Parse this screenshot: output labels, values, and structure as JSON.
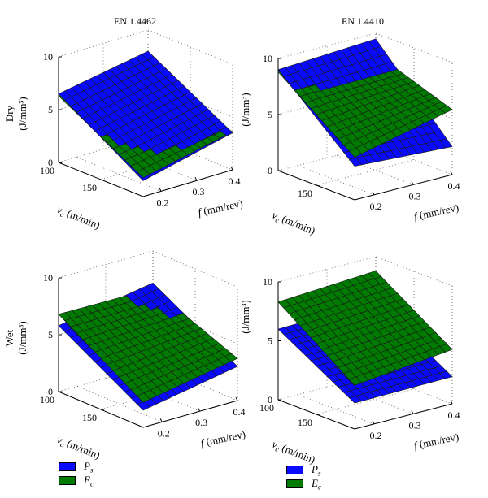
{
  "chart_data": [
    {
      "type": "surface3d",
      "title": "EN 1.4462",
      "ylabel": "Dry (J/mm³)",
      "x": {
        "label": "v_c (m/min)",
        "ticks": [
          "100",
          "150"
        ],
        "range": [
          100,
          200
        ]
      },
      "y": {
        "label": "f (mm/rev)",
        "ticks": [
          "0.2",
          "0.3",
          "0.4"
        ],
        "range": [
          0.15,
          0.4
        ]
      },
      "z": {
        "ticks": [
          "0",
          "5",
          "10"
        ],
        "range": [
          0,
          10
        ]
      },
      "grid": true,
      "series": [
        {
          "name": "Ps",
          "color": "#0a0aff",
          "corners": [
            6.5,
            8.0,
            1.5,
            3.5
          ]
        },
        {
          "name": "Ec",
          "color": "#007a00",
          "corners": [
            6.3,
            4.8,
            1.8,
            3.6
          ]
        }
      ]
    },
    {
      "type": "surface3d",
      "title": "EN 1.4410",
      "ylabel": "(J/mm³)",
      "x": {
        "label": "v_c (m/min)",
        "ticks": [
          "150"
        ],
        "range": [
          100,
          200
        ]
      },
      "y": {
        "label": "f (mm/rev)",
        "ticks": [
          "0.2",
          "0.3",
          "0.4"
        ],
        "range": [
          0.15,
          0.4
        ]
      },
      "z": {
        "ticks": [
          "0",
          "5",
          "10"
        ],
        "range": [
          0,
          10
        ]
      },
      "grid": true,
      "series": [
        {
          "name": "Ps",
          "color": "#0a0aff",
          "corners": [
            9.0,
            9.5,
            3.0,
            2.5
          ]
        },
        {
          "name": "Ec",
          "color": "#007a00",
          "corners": [
            8.8,
            8.2,
            3.8,
            5.8
          ]
        }
      ]
    },
    {
      "type": "surface3d",
      "title": "",
      "ylabel": "Wet (J/mm³)",
      "x": {
        "label": "v_c (m/min)",
        "ticks": [
          "100",
          "150"
        ],
        "range": [
          100,
          200
        ]
      },
      "y": {
        "label": "f (mm/rev)",
        "ticks": [
          "0.2",
          "0.3",
          "0.4"
        ],
        "range": [
          0.15,
          0.4
        ]
      },
      "z": {
        "ticks": [
          "0",
          "5",
          "10"
        ],
        "range": [
          0,
          10
        ]
      },
      "grid": true,
      "series": [
        {
          "name": "Ps",
          "color": "#0a0aff",
          "corners": [
            5.8,
            7.2,
            1.5,
            3.0
          ]
        },
        {
          "name": "Ec",
          "color": "#007a00",
          "corners": [
            6.8,
            6.7,
            2.2,
            3.7
          ]
        }
      ]
    },
    {
      "type": "surface3d",
      "title": "",
      "ylabel": "(J/mm³)",
      "x": {
        "label": "v_c (m/min)",
        "ticks": [
          "100",
          "150"
        ],
        "range": [
          100,
          200
        ]
      },
      "y": {
        "label": "f (mm/rev)",
        "ticks": [
          "0.2",
          "0.3",
          "0.4"
        ],
        "range": [
          0.15,
          0.4
        ]
      },
      "z": {
        "ticks": [
          "0",
          "5",
          "10"
        ],
        "range": [
          0,
          10
        ]
      },
      "grid": true,
      "series": [
        {
          "name": "Ps",
          "color": "#0a0aff",
          "corners": [
            6.0,
            6.2,
            2.2,
            2.3
          ]
        },
        {
          "name": "Ec",
          "color": "#007a00",
          "corners": [
            8.3,
            8.8,
            3.7,
            4.6
          ]
        }
      ]
    }
  ],
  "legends": [
    {
      "items": [
        {
          "name": "P",
          "sub": "s",
          "color": "#0a0aff"
        },
        {
          "name": "E",
          "sub": "c",
          "color": "#007a00"
        }
      ]
    },
    {
      "items": [
        {
          "name": "P",
          "sub": "s",
          "color": "#0a0aff"
        },
        {
          "name": "E",
          "sub": "c",
          "color": "#007a00"
        }
      ]
    }
  ]
}
